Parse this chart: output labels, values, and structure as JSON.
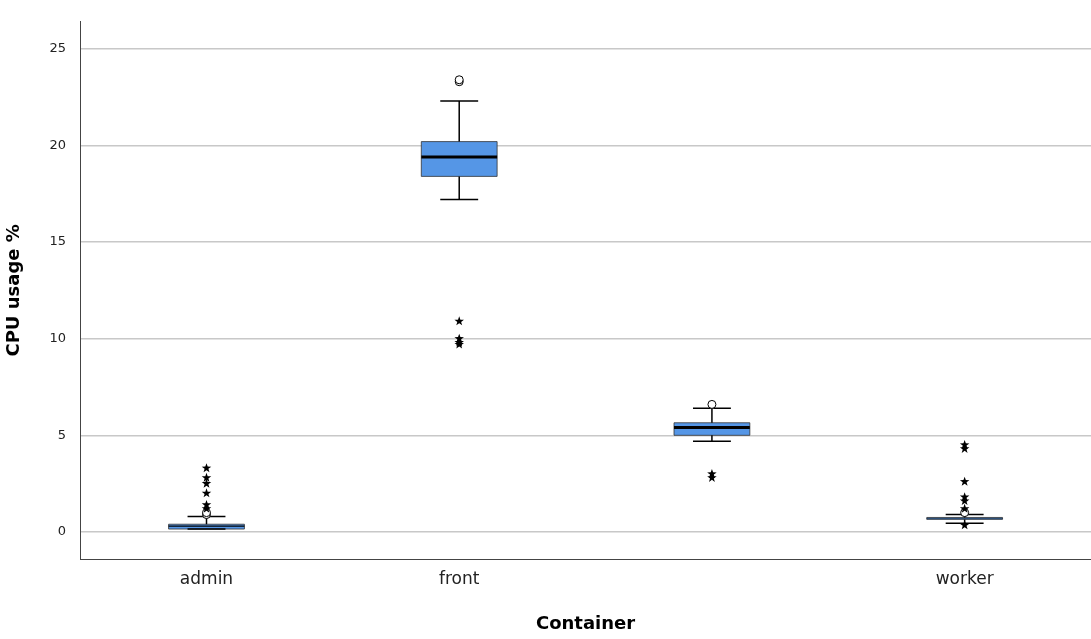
{
  "chart_data": {
    "type": "box",
    "xlabel": "Container",
    "ylabel": "CPU usage %",
    "categories": [
      "admin",
      "front",
      null,
      "worker"
    ],
    "color": "#5596e6",
    "ylim": [
      -1.4,
      26.4
    ],
    "yticks": [
      0,
      5,
      10,
      15,
      20,
      25
    ],
    "grid": "y",
    "legend": false,
    "boxes": [
      {
        "low": 0.15,
        "q1": 0.15,
        "median": 0.3,
        "q3": 0.4,
        "high": 0.8,
        "outliers": [
          0.9,
          1.0,
          1.2,
          1.4,
          2.0,
          2.5,
          2.8,
          3.3
        ]
      },
      {
        "low": 17.2,
        "q1": 18.4,
        "median": 19.4,
        "q3": 20.2,
        "high": 22.3,
        "outliers": [
          23.3,
          23.4,
          9.7,
          9.8,
          10.0,
          10.9
        ]
      },
      {
        "low": 4.7,
        "q1": 5.0,
        "median": 5.4,
        "q3": 5.65,
        "high": 6.4,
        "outliers": [
          6.6,
          3.0,
          2.8
        ]
      },
      {
        "low": 0.45,
        "q1": 0.65,
        "median": 0.7,
        "q3": 0.75,
        "high": 0.9,
        "outliers": [
          0.35,
          1.0,
          1.2,
          1.6,
          1.8,
          2.6,
          4.3,
          4.5
        ]
      }
    ]
  }
}
